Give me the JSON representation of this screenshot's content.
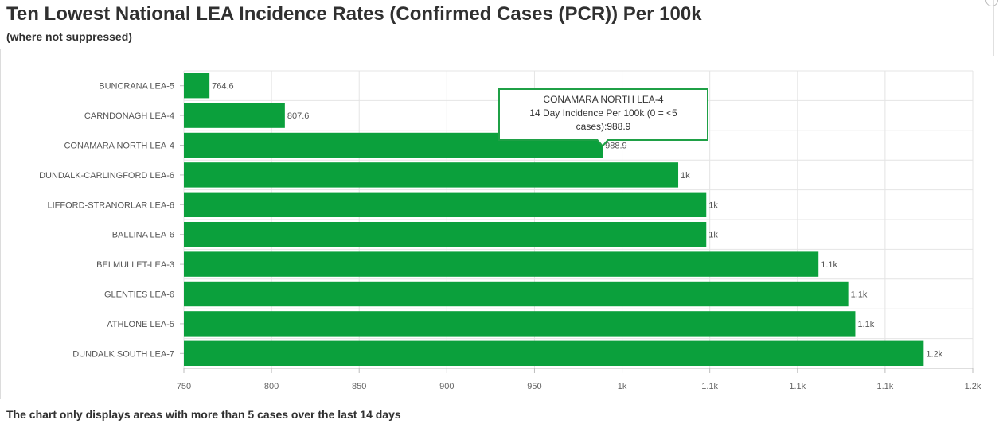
{
  "header": {
    "title": "Ten Lowest National LEA Incidence Rates (Confirmed Cases (PCR)) Per 100k",
    "subtitle": "(where not suppressed)"
  },
  "footer": {
    "note": "The chart only displays areas with more than 5 cases over the last 14 days"
  },
  "tooltip": {
    "area": "CONAMARA NORTH LEA-4",
    "line2": "14 Day Incidence Per 100k (0 = <5",
    "line3": "cases):988.9"
  },
  "colors": {
    "bar": "#0ba03c",
    "grid": "#e4e4e4",
    "accent": "#1fa046"
  },
  "chart_data": {
    "type": "bar",
    "orientation": "horizontal",
    "categories": [
      "BUNCRANA LEA-5",
      "CARNDONAGH LEA-4",
      "CONAMARA NORTH LEA-4",
      "DUNDALK-CARLINGFORD LEA-6",
      "LIFFORD-STRANORLAR LEA-6",
      "BALLINA LEA-6",
      "BELMULLET-LEA-3",
      "GLENTIES LEA-6",
      "ATHLONE LEA-5",
      "DUNDALK SOUTH LEA-7"
    ],
    "values": [
      764.6,
      807.6,
      988.9,
      1032,
      1048,
      1048,
      1112,
      1129,
      1133,
      1172
    ],
    "data_labels": [
      "764.6",
      "807.6",
      "988.9",
      "1k",
      "1k",
      "1k",
      "1.1k",
      "1.1k",
      "1.1k",
      "1.2k"
    ],
    "xlim": [
      750,
      1200
    ],
    "xticks": [
      750,
      800,
      850,
      900,
      950,
      1000,
      1050,
      1100,
      1150,
      1200
    ],
    "xtick_labels": [
      "750",
      "800",
      "850",
      "900",
      "950",
      "1k",
      "1.1k",
      "1.1k",
      "1.1k",
      "1.2k"
    ],
    "grid": true
  }
}
